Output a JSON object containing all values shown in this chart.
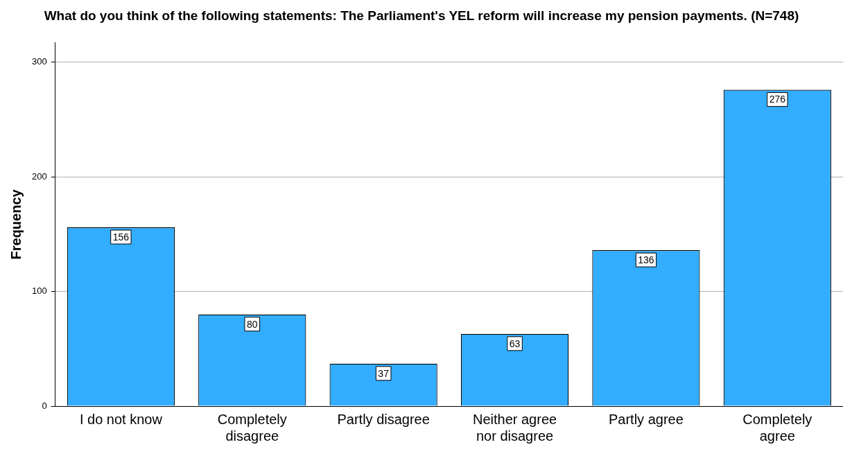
{
  "chart_data": {
    "type": "bar",
    "title": "What do you think of the following statements: The Parliament's YEL reform will increase my pension payments. (N=748)",
    "ylabel": "Frequency",
    "categories": [
      "I do not know",
      "Completely disagree",
      "Partly disagree",
      "Neither agree nor disagree",
      "Partly agree",
      "Completely agree"
    ],
    "values": [
      156,
      80,
      37,
      63,
      136,
      276
    ],
    "color": "#33adff",
    "ylim": [
      0,
      317
    ],
    "yticks": [
      0,
      100,
      200,
      300
    ],
    "grid": "y",
    "data_labels": true,
    "legend": false
  }
}
